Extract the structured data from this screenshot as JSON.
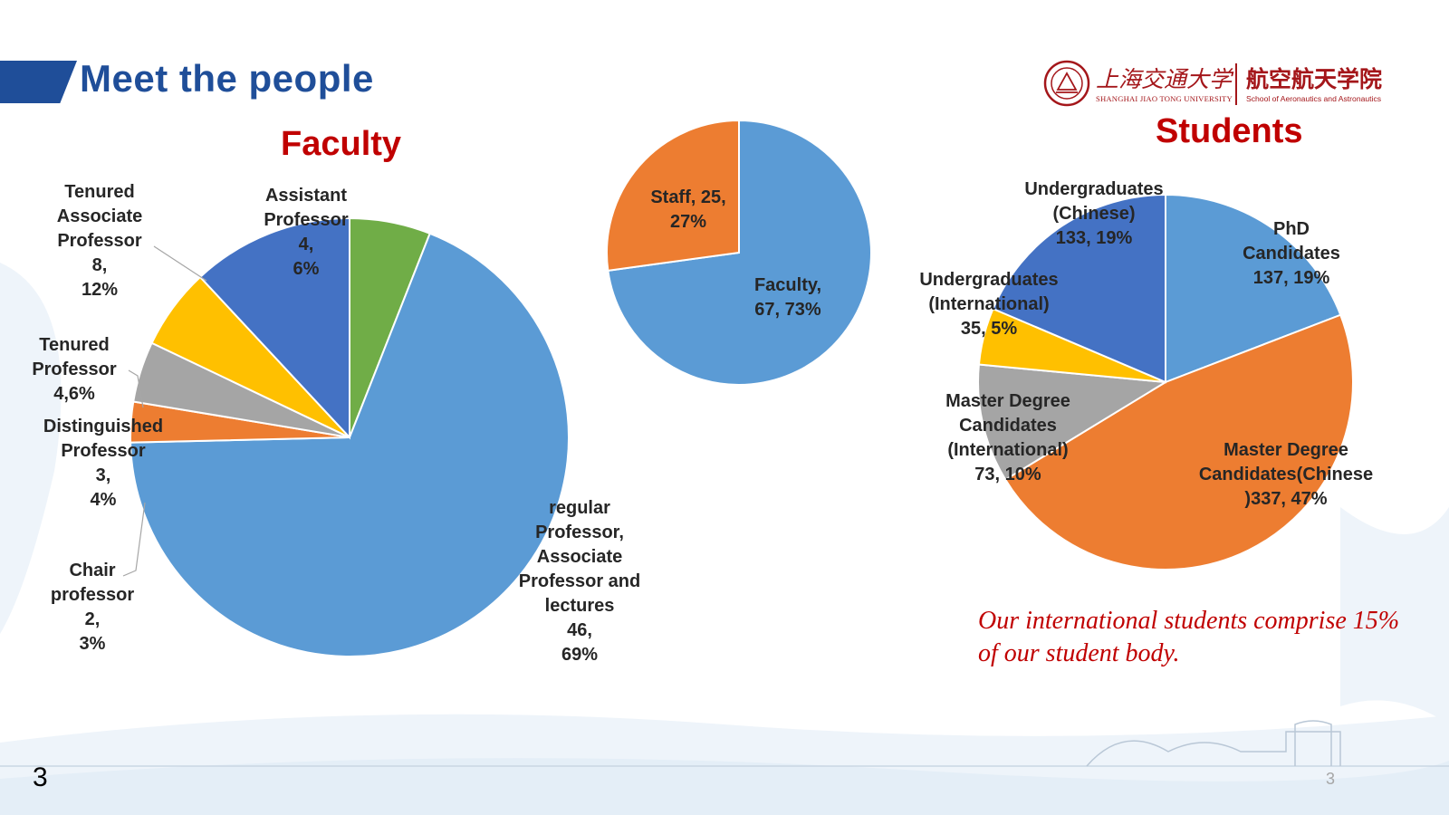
{
  "header": {
    "title": "Meet the people"
  },
  "logo": {
    "cn_university": "上海交通大学",
    "en_university": "SHANGHAI JIAO TONG UNIVERSITY",
    "cn_school": "航空航天学院",
    "en_school": "School of Aeronautics and Astronautics"
  },
  "faculty_title": "Faculty",
  "students_title": "Students",
  "note": "Our international students comprise 15% of our student body.",
  "slide_number": "3",
  "footer_number": "3",
  "colors": {
    "accent": "#1f4e99",
    "title_red": "#c00000"
  },
  "chart_data": [
    {
      "type": "pie",
      "title": "Faculty",
      "categories": [
        "Assistant Professor",
        "regular Professor, Associate Professor and lectures",
        "Chair professor",
        "Distinguished Professor",
        "Tenured Professor",
        "Tenured Associate Professor"
      ],
      "values": [
        4,
        46,
        2,
        3,
        4,
        8
      ],
      "percents": [
        6,
        69,
        3,
        4,
        6,
        12
      ],
      "colors": [
        "#70ad47",
        "#5b9bd5",
        "#ed7d31",
        "#a5a5a5",
        "#ffc000",
        "#4472c4"
      ],
      "labels": [
        "Assistant\nProfessor\n4,\n6%",
        "regular\nProfessor,\nAssociate\nProfessor and\nlectures\n46,\n69%",
        "Chair\nprofessor\n2,\n3%",
        "Distinguished\nProfessor\n3,\n4%",
        "Tenured\nProfessor\n4,6%",
        "Tenured\nAssociate\nProfessor\n8,\n12%"
      ]
    },
    {
      "type": "pie",
      "title": "",
      "categories": [
        "Faculty",
        "Staff"
      ],
      "values": [
        67,
        25
      ],
      "percents": [
        73,
        27
      ],
      "colors": [
        "#5b9bd5",
        "#ed7d31"
      ],
      "labels": [
        "Faculty,\n67, 73%",
        "Staff, 25,\n27%"
      ]
    },
    {
      "type": "pie",
      "title": "Students",
      "categories": [
        "PhD Candidates",
        "Master Degree Candidates(Chinese)",
        "Master Degree Candidates (International)",
        "Undergraduates (International)",
        "Undergraduates (Chinese)"
      ],
      "values": [
        137,
        337,
        73,
        35,
        133
      ],
      "percents": [
        19,
        47,
        10,
        5,
        19
      ],
      "colors": [
        "#5b9bd5",
        "#ed7d31",
        "#a5a5a5",
        "#ffc000",
        "#4472c4"
      ],
      "labels": [
        "PhD\nCandidates\n137, 19%",
        "Master Degree\nCandidates(Chinese\n)337, 47%",
        "Master Degree\nCandidates\n(International)\n73, 10%",
        "Undergraduates\n(International)\n35, 5%",
        "Undergraduates\n(Chinese)\n133, 19%"
      ]
    }
  ]
}
